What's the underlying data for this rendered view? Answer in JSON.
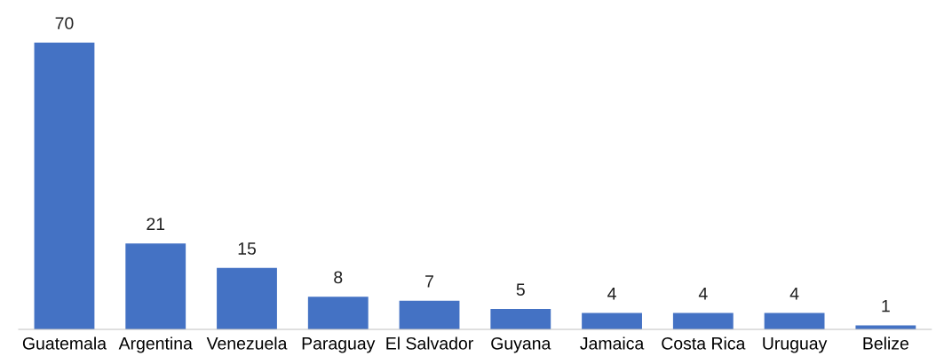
{
  "chart_data": {
    "type": "bar",
    "categories": [
      "Guatemala",
      "Argentina",
      "Venezuela",
      "Paraguay",
      "El Salvador",
      "Guyana",
      "Jamaica",
      "Costa Rica",
      "Uruguay",
      "Belize"
    ],
    "values": [
      70,
      21,
      15,
      8,
      7,
      5,
      4,
      4,
      4,
      1
    ],
    "color": "#4472c4",
    "data_labels": true,
    "grid": false,
    "legend": false
  }
}
